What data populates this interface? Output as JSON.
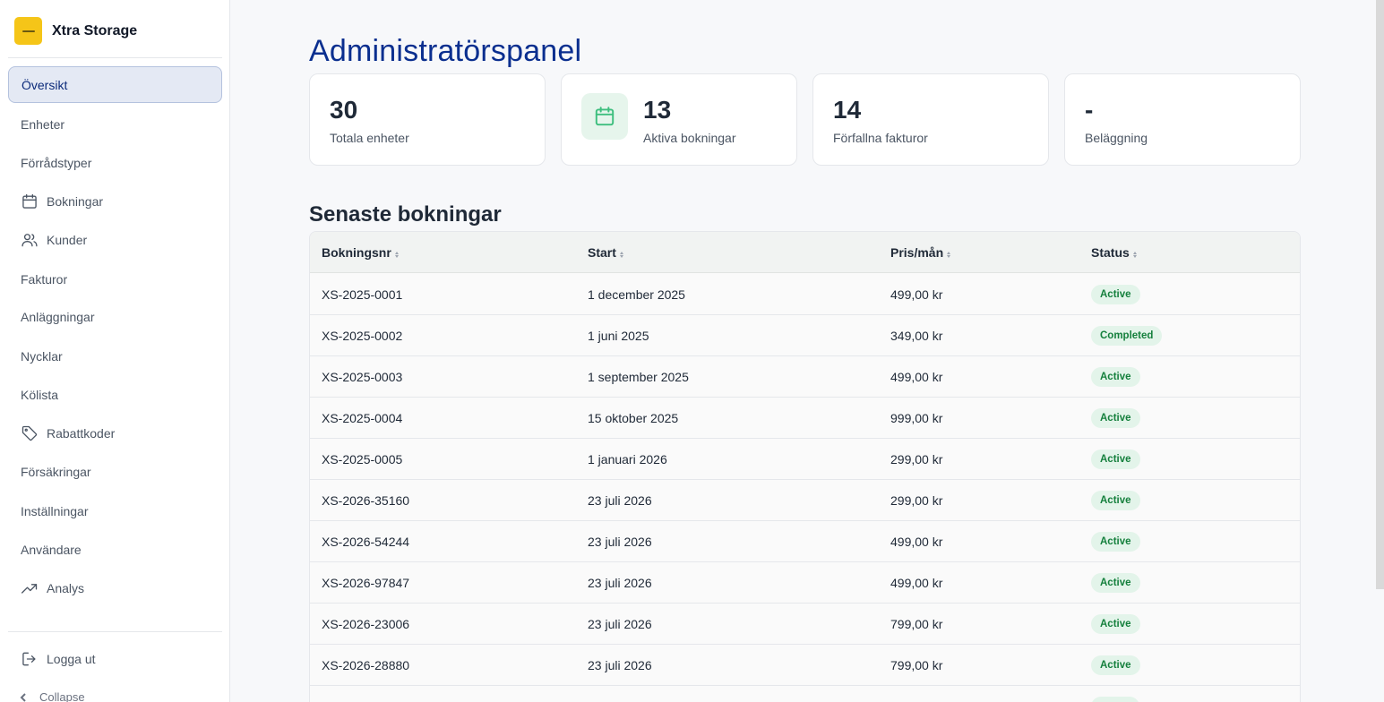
{
  "brand": {
    "name": "Xtra Storage"
  },
  "sidebar": {
    "items": [
      {
        "label": "Översikt",
        "icon": "",
        "active": true
      },
      {
        "label": "Enheter",
        "icon": ""
      },
      {
        "label": "Förrådstyper",
        "icon": ""
      },
      {
        "label": "Bokningar",
        "icon": "calendar-icon"
      },
      {
        "label": "Kunder",
        "icon": "users-icon"
      },
      {
        "label": "Fakturor",
        "icon": ""
      },
      {
        "label": "Anläggningar",
        "icon": ""
      },
      {
        "label": "Nycklar",
        "icon": ""
      },
      {
        "label": "Kölista",
        "icon": ""
      },
      {
        "label": "Rabattkoder",
        "icon": "tag-icon"
      },
      {
        "label": "Försäkringar",
        "icon": ""
      },
      {
        "label": "Inställningar",
        "icon": ""
      },
      {
        "label": "Användare",
        "icon": ""
      },
      {
        "label": "Analys",
        "icon": "trending-up-icon"
      }
    ],
    "logout": "Logga ut",
    "collapse": "Collapse"
  },
  "main": {
    "title": "Administratörspanel",
    "stats": [
      {
        "value": "30",
        "label": "Totala enheter"
      },
      {
        "value": "13",
        "label": "Aktiva bokningar",
        "icon": "calendar-icon"
      },
      {
        "value": "14",
        "label": "Förfallna fakturor"
      },
      {
        "value": "-",
        "label": "Beläggning"
      }
    ],
    "recent": {
      "title": "Senaste bokningar",
      "columns": [
        "Bokningsnr",
        "Start",
        "Pris/mån",
        "Status"
      ],
      "rows": [
        {
          "id": "XS-2025-0001",
          "start": "1 december 2025",
          "price": "499,00 kr",
          "status": "Active"
        },
        {
          "id": "XS-2025-0002",
          "start": "1 juni 2025",
          "price": "349,00 kr",
          "status": "Completed"
        },
        {
          "id": "XS-2025-0003",
          "start": "1 september 2025",
          "price": "499,00 kr",
          "status": "Active"
        },
        {
          "id": "XS-2025-0004",
          "start": "15 oktober 2025",
          "price": "999,00 kr",
          "status": "Active"
        },
        {
          "id": "XS-2025-0005",
          "start": "1 januari 2026",
          "price": "299,00 kr",
          "status": "Active"
        },
        {
          "id": "XS-2026-35160",
          "start": "23 juli 2026",
          "price": "299,00 kr",
          "status": "Active"
        },
        {
          "id": "XS-2026-54244",
          "start": "23 juli 2026",
          "price": "499,00 kr",
          "status": "Active"
        },
        {
          "id": "XS-2026-97847",
          "start": "23 juli 2026",
          "price": "499,00 kr",
          "status": "Active"
        },
        {
          "id": "XS-2026-23006",
          "start": "23 juli 2026",
          "price": "799,00 kr",
          "status": "Active"
        },
        {
          "id": "XS-2026-28880",
          "start": "23 juli 2026",
          "price": "799,00 kr",
          "status": "Active"
        }
      ]
    }
  },
  "colors": {
    "accent": "#0b2f8f",
    "brand": "#f5c518",
    "status_active": "#15803d",
    "status_bg": "#e3f4ea"
  }
}
